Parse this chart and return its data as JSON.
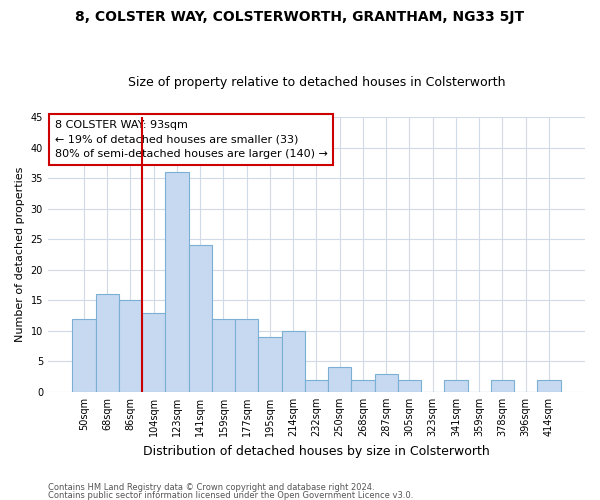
{
  "title": "8, COLSTER WAY, COLSTERWORTH, GRANTHAM, NG33 5JT",
  "subtitle": "Size of property relative to detached houses in Colsterworth",
  "xlabel": "Distribution of detached houses by size in Colsterworth",
  "ylabel": "Number of detached properties",
  "bar_labels": [
    "50sqm",
    "68sqm",
    "86sqm",
    "104sqm",
    "123sqm",
    "141sqm",
    "159sqm",
    "177sqm",
    "195sqm",
    "214sqm",
    "232sqm",
    "250sqm",
    "268sqm",
    "287sqm",
    "305sqm",
    "323sqm",
    "341sqm",
    "359sqm",
    "378sqm",
    "396sqm",
    "414sqm"
  ],
  "bar_values": [
    12,
    16,
    15,
    13,
    36,
    24,
    12,
    12,
    9,
    10,
    2,
    4,
    2,
    3,
    2,
    0,
    2,
    0,
    2,
    0,
    2
  ],
  "bar_color": "#c6d9f1",
  "bar_edge_color": "#7bafd4",
  "vline_color": "#cc0000",
  "vline_position": 2.5,
  "ylim": [
    0,
    45
  ],
  "yticks": [
    0,
    5,
    10,
    15,
    20,
    25,
    30,
    35,
    40,
    45
  ],
  "annotation_text": "8 COLSTER WAY: 93sqm\n← 19% of detached houses are smaller (33)\n80% of semi-detached houses are larger (140) →",
  "annotation_box_color": "#ffffff",
  "annotation_box_edge": "#cc0000",
  "footnote1": "Contains HM Land Registry data © Crown copyright and database right 2024.",
  "footnote2": "Contains public sector information licensed under the Open Government Licence v3.0.",
  "background_color": "#ffffff",
  "grid_color": "#d0dae8"
}
